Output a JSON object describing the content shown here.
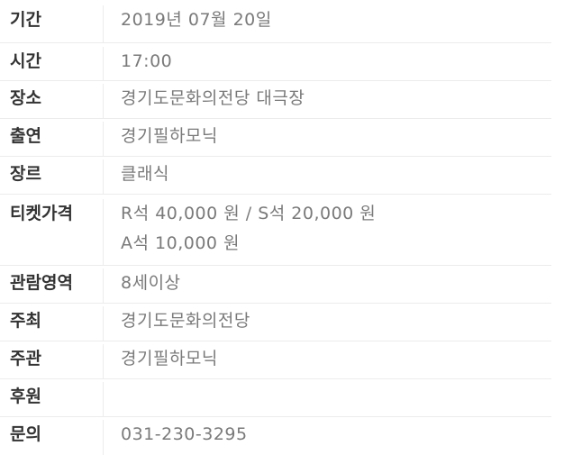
{
  "rows": [
    {
      "label": "기간",
      "lines": [
        "2019년 07월 20일"
      ]
    },
    {
      "label": "시간",
      "lines": [
        "17:00"
      ]
    },
    {
      "label": "장소",
      "lines": [
        "경기도문화의전당 대극장"
      ]
    },
    {
      "label": "출연",
      "lines": [
        "경기필하모닉"
      ]
    },
    {
      "label": "장르",
      "lines": [
        "클래식"
      ]
    },
    {
      "label": "티켓가격",
      "lines": [
        "R석 40,000 원 / S석 20,000 원",
        "A석 10,000 원"
      ]
    },
    {
      "label": "관람영역",
      "lines": [
        "8세이상"
      ]
    },
    {
      "label": "주최",
      "lines": [
        "경기도문화의전당"
      ]
    },
    {
      "label": "주관",
      "lines": [
        "경기필하모닉"
      ]
    },
    {
      "label": "후원",
      "lines": [
        ""
      ]
    },
    {
      "label": "문의",
      "lines": [
        "031-230-3295"
      ]
    }
  ]
}
